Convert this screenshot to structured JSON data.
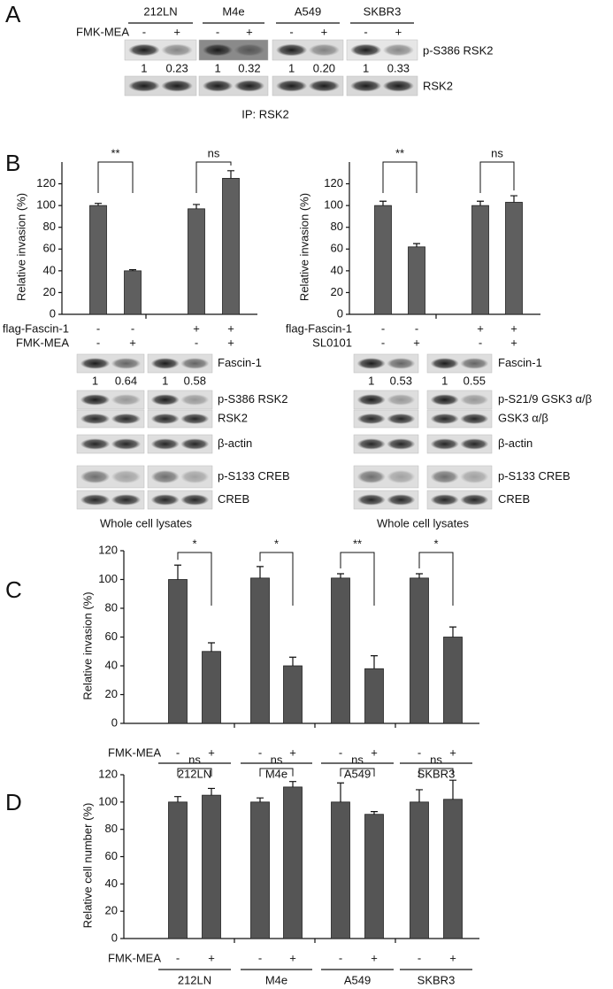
{
  "figure": {
    "panel_labels": {
      "a": "A",
      "b": "B",
      "c": "C",
      "d": "D"
    },
    "panel_a": {
      "cell_lines": [
        "212LN",
        "M4e",
        "A549",
        "SKBR3"
      ],
      "treatment": "FMK-MEA",
      "signs": [
        "-",
        "+",
        "-",
        "+",
        "-",
        "+",
        "-",
        "+"
      ],
      "ratios": [
        "1",
        "0.23",
        "1",
        "0.32",
        "1",
        "0.20",
        "1",
        "0.33"
      ],
      "blot_labels": [
        "p-S386 RSK2",
        "RSK2"
      ],
      "footnote": "IP: RSK2"
    },
    "panel_b_blots": [
      {
        "labels": [
          "Fascin-1",
          "p-S386 RSK2",
          "RSK2",
          "β-actin",
          "p-S133 CREB",
          "CREB"
        ],
        "ratios": [
          "1",
          "0.64",
          "1",
          "0.58"
        ],
        "footnote": "Whole cell lysates"
      },
      {
        "labels": [
          "Fascin-1",
          "p-S21/9 GSK3 α/β",
          "GSK3 α/β",
          "β-actin",
          "p-S133 CREB",
          "CREB"
        ],
        "ratios": [
          "1",
          "0.53",
          "1",
          "0.55"
        ],
        "footnote": "Whole cell lysates"
      }
    ]
  },
  "chart_data": [
    {
      "type": "bar",
      "y_label": "Relative invasion (%)",
      "ylim": [
        0,
        140
      ],
      "yticks": [
        0,
        20,
        40,
        60,
        80,
        100,
        120
      ],
      "color": "#5f5f5f",
      "values": [
        100,
        40,
        97,
        125
      ],
      "errors": [
        2,
        1,
        4,
        7
      ],
      "significance": [
        "**",
        "ns"
      ],
      "conditions": [
        {
          "name": "flag-Fascin-1",
          "signs": [
            "-",
            "-",
            "+",
            "+"
          ]
        },
        {
          "name": "FMK-MEA",
          "signs": [
            "-",
            "+",
            "-",
            "+"
          ]
        }
      ]
    },
    {
      "type": "bar",
      "y_label": "Relative invasion (%)",
      "ylim": [
        0,
        140
      ],
      "yticks": [
        0,
        20,
        40,
        60,
        80,
        100,
        120
      ],
      "color": "#5f5f5f",
      "values": [
        100,
        62,
        100,
        103
      ],
      "errors": [
        4,
        3,
        4,
        6
      ],
      "significance": [
        "**",
        "ns"
      ],
      "conditions": [
        {
          "name": "flag-Fascin-1",
          "signs": [
            "-",
            "-",
            "+",
            "+"
          ]
        },
        {
          "name": "SL0101",
          "signs": [
            "-",
            "+",
            "-",
            "+"
          ]
        }
      ]
    },
    {
      "type": "bar",
      "y_label": "Relative invasion (%)",
      "ylim": [
        0,
        120
      ],
      "yticks": [
        0,
        20,
        40,
        60,
        80,
        100,
        120
      ],
      "color": "#555555",
      "values": [
        100,
        50,
        101,
        40,
        101,
        38,
        101,
        60
      ],
      "errors": [
        10,
        6,
        8,
        6,
        3,
        9,
        3,
        7
      ],
      "significance": [
        "*",
        "*",
        "**",
        "*"
      ],
      "groups": [
        "212LN",
        "M4e",
        "A549",
        "SKBR3"
      ],
      "conditions": [
        {
          "name": "FMK-MEA",
          "signs": [
            "-",
            "+",
            "-",
            "+",
            "-",
            "+",
            "-",
            "+"
          ]
        }
      ]
    },
    {
      "type": "bar",
      "y_label": "Relative  cell number (%)",
      "ylim": [
        0,
        120
      ],
      "yticks": [
        0,
        20,
        40,
        60,
        80,
        100,
        120
      ],
      "color": "#555555",
      "values": [
        100,
        105,
        100,
        111,
        100,
        91,
        100,
        102
      ],
      "errors": [
        4,
        5,
        3,
        4,
        14,
        2,
        9,
        14
      ],
      "significance": [
        "ns",
        "ns",
        "ns",
        "ns"
      ],
      "groups": [
        "212LN",
        "M4e",
        "A549",
        "SKBR3"
      ],
      "conditions": [
        {
          "name": "FMK-MEA",
          "signs": [
            "-",
            "+",
            "-",
            "+",
            "-",
            "+",
            "-",
            "+"
          ]
        }
      ]
    }
  ]
}
